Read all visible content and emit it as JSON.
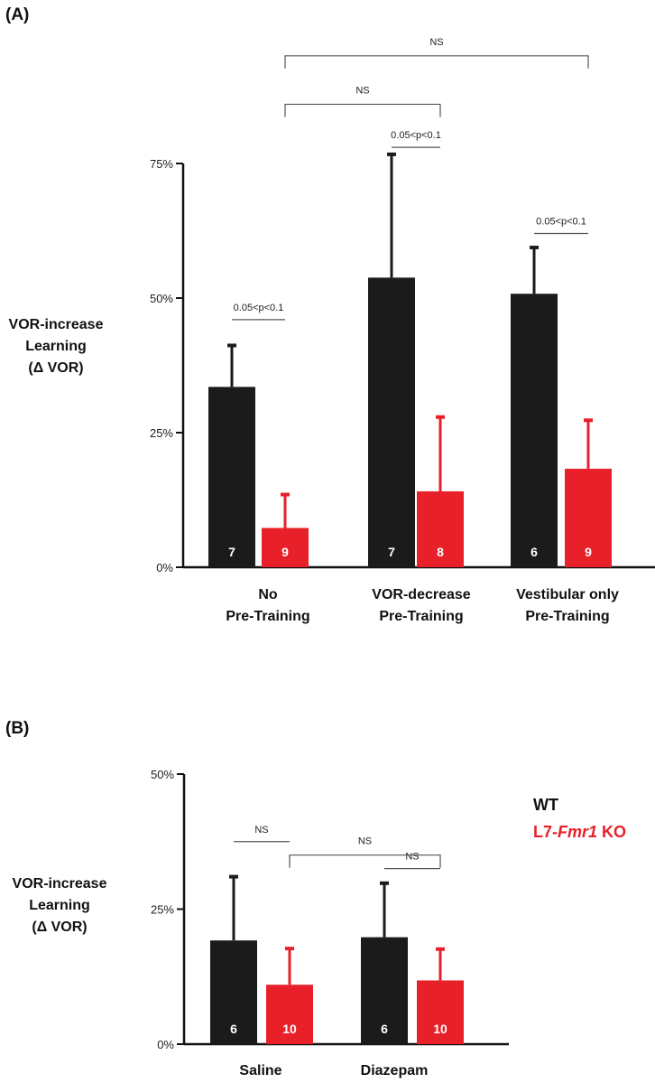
{
  "colors": {
    "wt": "#1b1b1b",
    "ko": "#e8202a",
    "axis": "#111111",
    "bracket": "#555555"
  },
  "legend": {
    "wt": "WT",
    "ko_prefix": "L7-",
    "ko_gene": "Fmr1",
    "ko_suffix": " KO"
  },
  "chart_data": [
    {
      "panel": "(A)",
      "type": "bar",
      "ylabel": [
        "VOR-increase",
        "Learning",
        "(Δ VOR)"
      ],
      "ylim": [
        0,
        75
      ],
      "yticks": [
        0,
        25,
        50,
        75
      ],
      "ytick_labels": [
        "0%",
        "25%",
        "50%",
        "75%"
      ],
      "categories": [
        [
          "No",
          "Pre-Training"
        ],
        [
          "VOR-decrease",
          "Pre-Training"
        ],
        [
          "Vestibular only",
          "Pre-Training"
        ]
      ],
      "series": [
        {
          "name": "WT",
          "values": [
            33.5,
            53.8,
            50.8
          ],
          "errors": [
            7.7,
            22.9,
            8.6
          ],
          "n": [
            "7",
            "7",
            "6"
          ]
        },
        {
          "name": "L7-Fmr1 KO",
          "values": [
            7.3,
            14.1,
            18.3
          ],
          "errors": [
            6.2,
            13.8,
            9.0
          ],
          "n": [
            "9",
            "8",
            "9"
          ]
        }
      ],
      "annotations": [
        {
          "text": "0.05<p<0.1",
          "from": [
            0,
            0
          ],
          "to": [
            0,
            1
          ],
          "y": 46
        },
        {
          "text": "0.05<p<0.1",
          "from": [
            1,
            0
          ],
          "to": [
            1,
            1
          ],
          "y": 78
        },
        {
          "text": "0.05<p<0.1",
          "from": [
            2,
            0
          ],
          "to": [
            2,
            1
          ],
          "y": 62
        },
        {
          "text": "NS",
          "from": [
            0,
            1
          ],
          "to": [
            1,
            1
          ],
          "y": 86,
          "style": "bracket"
        },
        {
          "text": "NS",
          "from": [
            0,
            1
          ],
          "to": [
            2,
            1
          ],
          "y": 95,
          "style": "bracket"
        }
      ]
    },
    {
      "panel": "(B)",
      "type": "bar",
      "ylabel": [
        "VOR-increase",
        "Learning",
        "(Δ VOR)"
      ],
      "ylim": [
        0,
        50
      ],
      "yticks": [
        0,
        25,
        50
      ],
      "ytick_labels": [
        "0%",
        "25%",
        "50%"
      ],
      "categories": [
        [
          "Saline"
        ],
        [
          "Diazepam"
        ]
      ],
      "series": [
        {
          "name": "WT",
          "values": [
            19.2,
            19.8
          ],
          "errors": [
            11.8,
            10.0
          ],
          "n": [
            "6",
            "6"
          ]
        },
        {
          "name": "L7-Fmr1 KO",
          "values": [
            11.0,
            11.8
          ],
          "errors": [
            6.7,
            5.8
          ],
          "n": [
            "10",
            "10"
          ]
        }
      ],
      "annotations": [
        {
          "text": "NS",
          "from": [
            0,
            0
          ],
          "to": [
            0,
            1
          ],
          "y": 37.5
        },
        {
          "text": "NS",
          "from": [
            1,
            0
          ],
          "to": [
            1,
            1
          ],
          "y": 32.5
        },
        {
          "text": "NS",
          "from": [
            0,
            1
          ],
          "to": [
            1,
            1
          ],
          "y": 35,
          "style": "bracket"
        }
      ]
    }
  ]
}
